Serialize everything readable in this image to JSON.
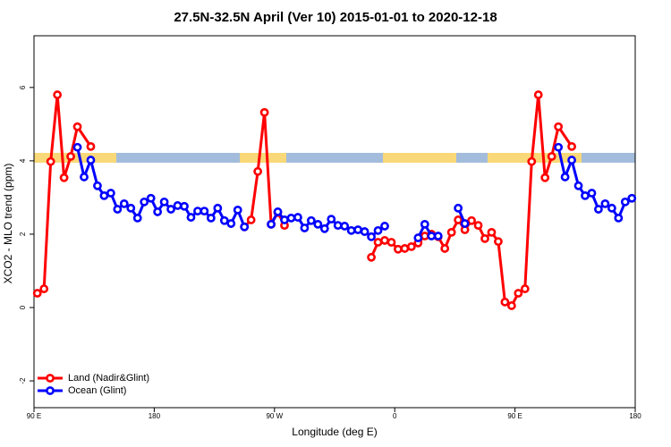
{
  "chart_data": {
    "type": "line",
    "title": "27.5N-32.5N April (Ver 10)   2015-01-01 to 2020-12-18",
    "x_label": "Longitude (deg E)",
    "y_label": "XCO2 - MLO trend (ppm)",
    "xlim": [
      90,
      540
    ],
    "ylim": [
      -2.73,
      7.41
    ],
    "xticks": [
      {
        "value": 90,
        "label": "90 E"
      },
      180,
      {
        "value": 270,
        "label": "90 W"
      },
      {
        "value": 360,
        "label": "0"
      },
      {
        "value": 450,
        "label": "90 E"
      },
      {
        "value": 540,
        "label": "180"
      }
    ],
    "yticks": [
      -2,
      0,
      2,
      4,
      6
    ],
    "legend": "bottom-left",
    "series": [
      {
        "name": "Land (Nadir&Glint)",
        "color": "#ff0000",
        "x": [
          92.5,
          97.5,
          102.5,
          107.5,
          112.5,
          117.5,
          122.5,
          132.5,
          137.5,
          247.5,
          252.5,
          257.5,
          262.5,
          267.5,
          272.5,
          277.5,
          282.5,
          342.5,
          347.5,
          352.5,
          357.5,
          362.5,
          367.5,
          372.5,
          377.5,
          382.5,
          387.5,
          392.5,
          397.5,
          402.5,
          407.5,
          412.5,
          417.5,
          422.5,
          427.5,
          432.5,
          437.5,
          442.5,
          447.5,
          452.5,
          457.5,
          462.5,
          467.5,
          472.5,
          477.5,
          482.5,
          492.5
        ],
        "values": [
          0.39,
          0.51,
          3.98,
          5.8,
          3.54,
          4.12,
          4.93,
          4.39,
          null,
          2.2,
          2.39,
          3.71,
          5.32,
          2.27,
          2.59,
          2.24,
          null,
          1.37,
          1.78,
          1.83,
          1.78,
          1.59,
          1.61,
          1.66,
          1.76,
          1.95,
          2.0,
          1.93,
          1.61,
          2.05,
          2.39,
          2.12,
          2.37,
          2.24,
          1.88,
          2.05,
          1.8,
          0.15,
          0.05,
          0.39,
          0.51,
          3.98,
          5.8,
          3.54,
          4.12,
          4.93,
          4.39
        ]
      },
      {
        "name": "Ocean (Glint)",
        "color": "#0000ff",
        "x": [
          122.5,
          127.5,
          132.5,
          137.5,
          142.5,
          147.5,
          152.5,
          157.5,
          162.5,
          167.5,
          172.5,
          177.5,
          182.5,
          187.5,
          192.5,
          197.5,
          202.5,
          207.5,
          212.5,
          217.5,
          222.5,
          227.5,
          232.5,
          237.5,
          242.5,
          247.5,
          257.5,
          267.5,
          272.5,
          277.5,
          282.5,
          287.5,
          292.5,
          297.5,
          302.5,
          307.5,
          312.5,
          317.5,
          322.5,
          327.5,
          332.5,
          337.5,
          342.5,
          347.5,
          352.5,
          362.5,
          377.5,
          382.5,
          387.5,
          392.5,
          400,
          407.5,
          412.5,
          450,
          482.5,
          487.5,
          492.5,
          497.5,
          502.5,
          507.5,
          512.5,
          517.5,
          522.5,
          527.5,
          532.5,
          537.5
        ],
        "values": [
          4.37,
          3.56,
          4.02,
          3.32,
          3.05,
          3.12,
          2.68,
          2.83,
          2.71,
          2.44,
          2.88,
          2.98,
          2.61,
          2.88,
          2.68,
          2.78,
          2.76,
          2.46,
          2.63,
          2.63,
          2.44,
          2.71,
          2.37,
          2.29,
          2.66,
          2.2,
          null,
          2.27,
          2.61,
          2.39,
          2.44,
          2.46,
          2.17,
          2.37,
          2.27,
          2.15,
          2.41,
          2.24,
          2.22,
          2.1,
          2.12,
          2.07,
          1.93,
          2.1,
          2.22,
          null,
          1.9,
          2.27,
          1.95,
          1.95,
          null,
          2.71,
          2.29,
          null,
          4.37,
          3.56,
          4.02,
          3.32,
          3.05,
          3.12,
          2.68,
          2.83,
          2.71,
          2.44,
          2.88,
          2.98
        ]
      }
    ]
  }
}
